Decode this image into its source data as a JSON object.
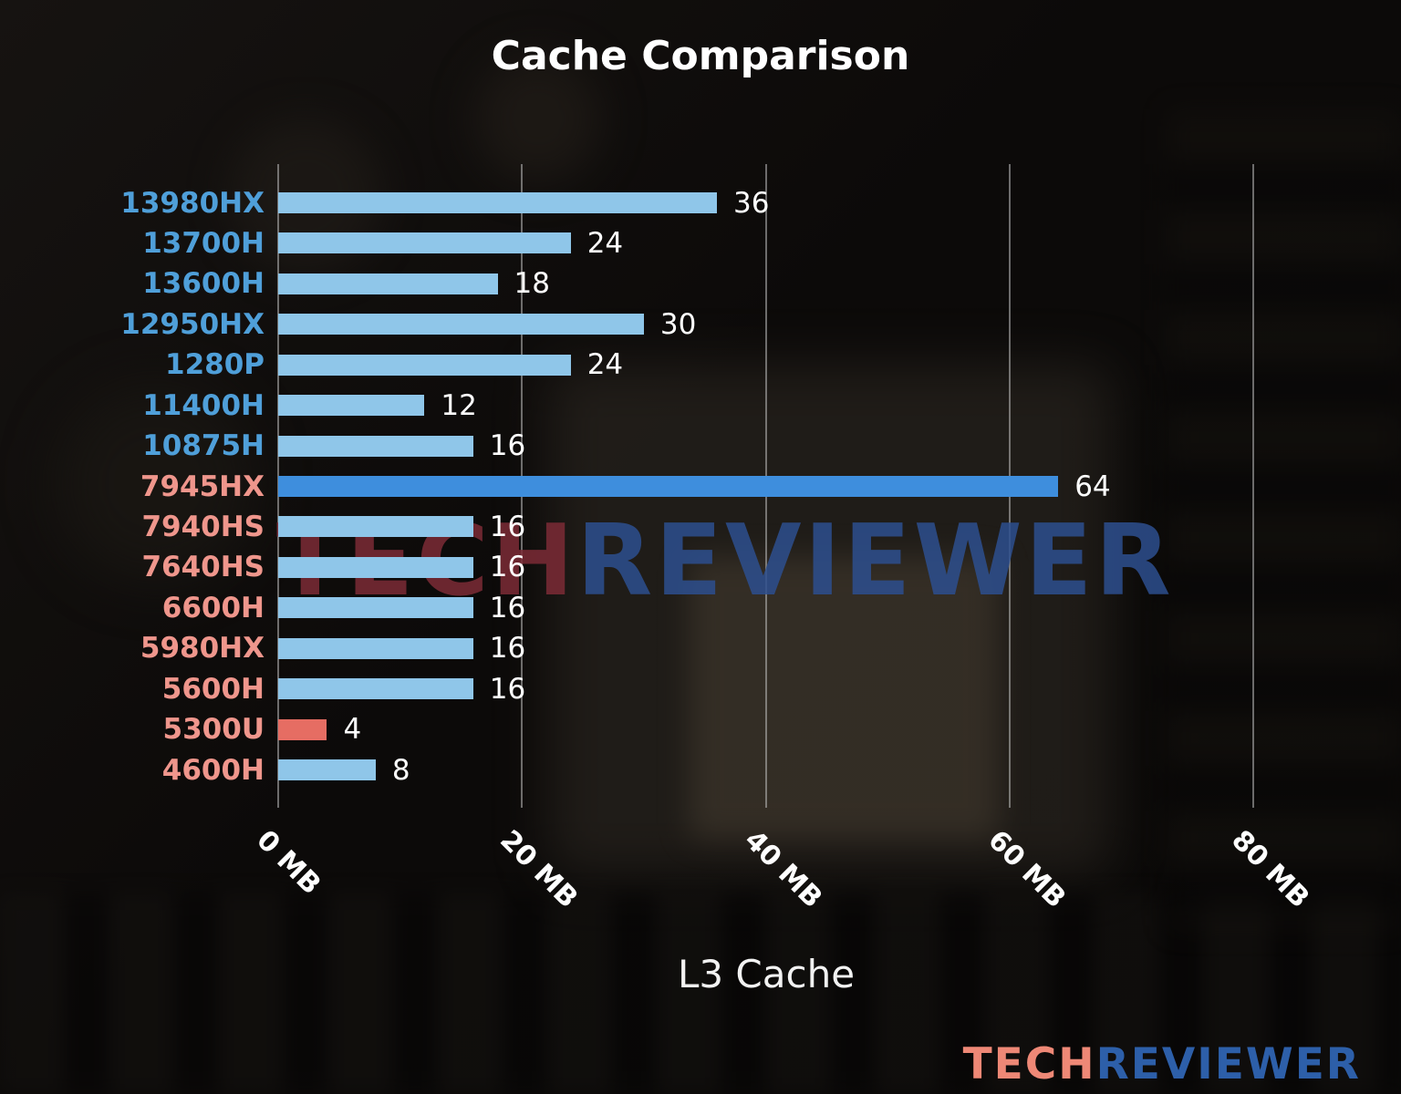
{
  "title": "Cache Comparison",
  "axis_title": "L3 Cache",
  "watermark": {
    "part1": "TECH",
    "part2": "REVIEWER"
  },
  "logo": {
    "part1": "TECH",
    "part2": "REVIEWER"
  },
  "colors": {
    "intel_label": "#4f9fd9",
    "amd_label": "#ef968c",
    "bar_default": "#8fc6e9",
    "bar_highlight": "#3e8edd",
    "bar_red": "#e66d63",
    "value_text": "#ffffff",
    "watermark_red": "#7c2b36",
    "watermark_blue": "#2d4f8f",
    "logo_red": "#ee8876",
    "logo_blue": "#2d5fa9"
  },
  "chart_data": {
    "type": "bar",
    "orientation": "horizontal",
    "title": "Cache Comparison",
    "xlabel": "L3 Cache",
    "ylabel": "",
    "xlim": [
      0,
      80
    ],
    "grid": true,
    "categories": [
      "13980HX",
      "13700H",
      "13600H",
      "12950HX",
      "1280P",
      "11400H",
      "10875H",
      "7945HX",
      "7940HS",
      "7640HS",
      "6600H",
      "5980HX",
      "5600H",
      "5300U",
      "4600H"
    ],
    "values": [
      36,
      24,
      18,
      30,
      24,
      12,
      16,
      64,
      16,
      16,
      16,
      16,
      16,
      4,
      8
    ],
    "unit": "MB",
    "xticks": [
      {
        "label": "0 MB",
        "value": 0
      },
      {
        "label": "20 MB",
        "value": 20
      },
      {
        "label": "40 MB",
        "value": 40
      },
      {
        "label": "60 MB",
        "value": 60
      },
      {
        "label": "80 MB",
        "value": 80
      }
    ],
    "label_colors": [
      "#4f9fd9",
      "#4f9fd9",
      "#4f9fd9",
      "#4f9fd9",
      "#4f9fd9",
      "#4f9fd9",
      "#4f9fd9",
      "#ef968c",
      "#ef968c",
      "#ef968c",
      "#ef968c",
      "#ef968c",
      "#ef968c",
      "#ef968c",
      "#ef968c"
    ],
    "bar_colors": [
      "#8fc6e9",
      "#8fc6e9",
      "#8fc6e9",
      "#8fc6e9",
      "#8fc6e9",
      "#8fc6e9",
      "#8fc6e9",
      "#3e8edd",
      "#8fc6e9",
      "#8fc6e9",
      "#8fc6e9",
      "#8fc6e9",
      "#8fc6e9",
      "#e66d63",
      "#8fc6e9"
    ]
  }
}
